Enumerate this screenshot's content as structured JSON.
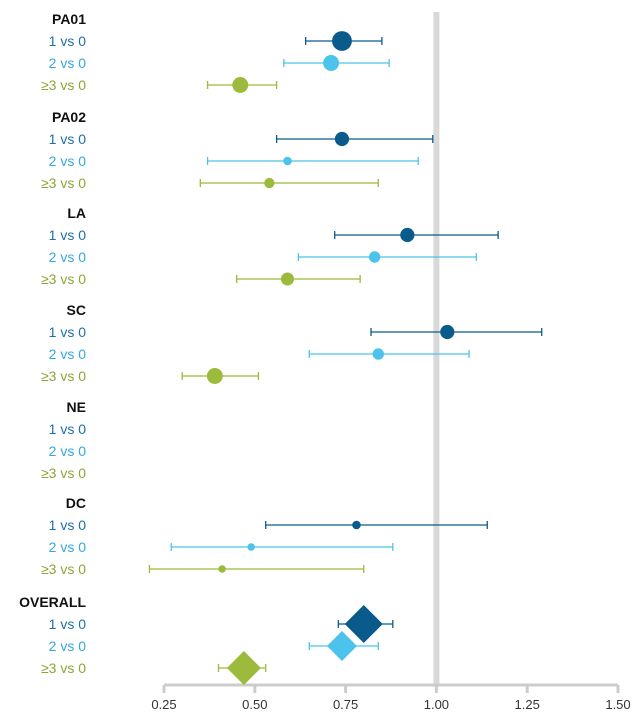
{
  "colors": {
    "c1": "#0b5a8c",
    "c2": "#4cc3ec",
    "c3": "#9cba3b",
    "ref_line": "#d9d9d9",
    "axis": "#cccccc",
    "label_c1": "#1d6fa8",
    "label_c2": "#35a8dd",
    "label_c3": "#8aa734"
  },
  "chart_data": {
    "type": "forest",
    "xlim": [
      0.25,
      1.5
    ],
    "ticks": [
      "0.25",
      "0.50",
      "0.75",
      "1.00",
      "1.25",
      "1.50"
    ],
    "tick_values": [
      0.25,
      0.5,
      0.75,
      1.0,
      1.25,
      1.5
    ],
    "reference_value": 1.0,
    "groups": [
      {
        "name": "PA01",
        "rows": [
          {
            "label": "1 vs 0",
            "series": "c1",
            "marker": "circle",
            "weight": 3,
            "est": 0.74,
            "lo": 0.64,
            "hi": 0.85
          },
          {
            "label": "2 vs 0",
            "series": "c2",
            "marker": "circle",
            "weight": 2.3,
            "est": 0.71,
            "lo": 0.58,
            "hi": 0.87
          },
          {
            "label": "≥3 vs 0",
            "series": "c3",
            "marker": "circle",
            "weight": 2.3,
            "est": 0.46,
            "lo": 0.37,
            "hi": 0.56
          }
        ]
      },
      {
        "name": "PA02",
        "rows": [
          {
            "label": "1 vs 0",
            "series": "c1",
            "marker": "circle",
            "weight": 2,
            "est": 0.74,
            "lo": 0.56,
            "hi": 0.99
          },
          {
            "label": "2 vs 0",
            "series": "c2",
            "marker": "circle",
            "weight": 1,
            "est": 0.59,
            "lo": 0.37,
            "hi": 0.95
          },
          {
            "label": "≥3 vs 0",
            "series": "c3",
            "marker": "circle",
            "weight": 1.3,
            "est": 0.54,
            "lo": 0.35,
            "hi": 0.84
          }
        ]
      },
      {
        "name": "LA",
        "rows": [
          {
            "label": "1 vs 0",
            "series": "c1",
            "marker": "circle",
            "weight": 2,
            "est": 0.92,
            "lo": 0.72,
            "hi": 1.17
          },
          {
            "label": "2 vs 0",
            "series": "c2",
            "marker": "circle",
            "weight": 1.5,
            "est": 0.83,
            "lo": 0.62,
            "hi": 1.11
          },
          {
            "label": "≥3 vs 0",
            "series": "c3",
            "marker": "circle",
            "weight": 1.8,
            "est": 0.59,
            "lo": 0.45,
            "hi": 0.79
          }
        ]
      },
      {
        "name": "SC",
        "rows": [
          {
            "label": "1 vs 0",
            "series": "c1",
            "marker": "circle",
            "weight": 2,
            "est": 1.03,
            "lo": 0.82,
            "hi": 1.29
          },
          {
            "label": "2 vs 0",
            "series": "c2",
            "marker": "circle",
            "weight": 1.5,
            "est": 0.84,
            "lo": 0.65,
            "hi": 1.09
          },
          {
            "label": "≥3 vs 0",
            "series": "c3",
            "marker": "circle",
            "weight": 2.3,
            "est": 0.39,
            "lo": 0.3,
            "hi": 0.51
          }
        ]
      },
      {
        "name": "NE",
        "rows": [
          {
            "label": "1 vs 0",
            "series": "c1",
            "marker": "none"
          },
          {
            "label": "2 vs 0",
            "series": "c2",
            "marker": "none"
          },
          {
            "label": "≥3 vs 0",
            "series": "c3",
            "marker": "none"
          }
        ]
      },
      {
        "name": "DC",
        "rows": [
          {
            "label": "1 vs 0",
            "series": "c1",
            "marker": "circle",
            "weight": 1,
            "est": 0.78,
            "lo": 0.53,
            "hi": 1.14
          },
          {
            "label": "2 vs 0",
            "series": "c2",
            "marker": "circle",
            "weight": 0.8,
            "est": 0.49,
            "lo": 0.27,
            "hi": 0.88
          },
          {
            "label": "≥3 vs 0",
            "series": "c3",
            "marker": "circle",
            "weight": 0.8,
            "est": 0.41,
            "lo": 0.21,
            "hi": 0.8
          }
        ]
      },
      {
        "name": "OVERALL",
        "rows": [
          {
            "label": "1 vs 0",
            "series": "c1",
            "marker": "diamond",
            "weight": 3,
            "est": 0.8,
            "lo": 0.73,
            "hi": 0.88
          },
          {
            "label": "2 vs 0",
            "series": "c2",
            "marker": "diamond",
            "weight": 2.2,
            "est": 0.74,
            "lo": 0.65,
            "hi": 0.84
          },
          {
            "label": "≥3 vs 0",
            "series": "c3",
            "marker": "diamond",
            "weight": 2.6,
            "est": 0.47,
            "lo": 0.4,
            "hi": 0.53
          }
        ]
      }
    ]
  }
}
